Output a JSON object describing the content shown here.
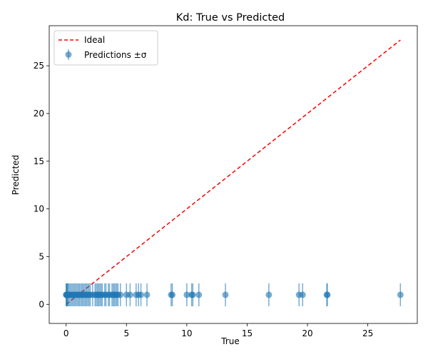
{
  "chart_data": {
    "type": "scatter",
    "title": "Kd: True vs Predicted",
    "xlabel": "True",
    "ylabel": "Predicted",
    "xlim": [
      -1.4,
      29.1
    ],
    "ylim": [
      -2.0,
      29.2
    ],
    "xticks": [
      0,
      5,
      10,
      15,
      20,
      25
    ],
    "yticks": [
      0,
      5,
      10,
      15,
      20,
      25
    ],
    "legend_position": "upper-left",
    "colors": {
      "ideal": "#ff0000",
      "points": "#1f77b4"
    },
    "series": [
      {
        "name": "Ideal",
        "style": "dashed-line",
        "x": [
          0,
          27.7
        ],
        "y": [
          0,
          27.7
        ]
      },
      {
        "name": "Predictions ±σ",
        "style": "errorbar",
        "sigma": 1.2,
        "x": [
          0.0,
          0.02,
          0.05,
          0.1,
          0.15,
          0.2,
          0.3,
          0.4,
          0.5,
          0.6,
          0.7,
          0.8,
          0.9,
          1.0,
          1.1,
          1.2,
          1.3,
          1.4,
          1.5,
          1.6,
          1.7,
          1.8,
          1.9,
          2.0,
          2.2,
          2.4,
          2.5,
          2.6,
          2.7,
          2.8,
          2.9,
          3.0,
          3.2,
          3.3,
          3.5,
          3.6,
          3.8,
          3.9,
          4.0,
          4.1,
          4.2,
          4.3,
          4.5,
          5.0,
          5.3,
          5.8,
          6.0,
          6.2,
          6.7,
          8.7,
          8.8,
          10.0,
          10.4,
          10.5,
          11.0,
          13.2,
          16.8,
          19.3,
          19.6,
          21.6,
          21.65,
          27.7
        ],
        "y": [
          1.0,
          1.0,
          1.0,
          1.0,
          1.0,
          1.0,
          1.0,
          1.0,
          1.0,
          1.0,
          1.0,
          1.0,
          1.0,
          1.0,
          1.0,
          1.0,
          1.0,
          1.0,
          1.0,
          1.0,
          1.0,
          1.0,
          1.0,
          1.0,
          1.0,
          1.0,
          1.0,
          1.0,
          1.0,
          1.0,
          1.0,
          1.0,
          1.0,
          1.0,
          1.0,
          1.0,
          1.0,
          1.0,
          1.0,
          1.0,
          1.0,
          1.0,
          1.0,
          1.0,
          1.0,
          1.0,
          1.0,
          1.0,
          1.0,
          1.0,
          1.0,
          1.0,
          1.0,
          1.0,
          1.0,
          1.0,
          1.0,
          1.0,
          1.0,
          1.0,
          1.0,
          1.0
        ]
      }
    ]
  }
}
